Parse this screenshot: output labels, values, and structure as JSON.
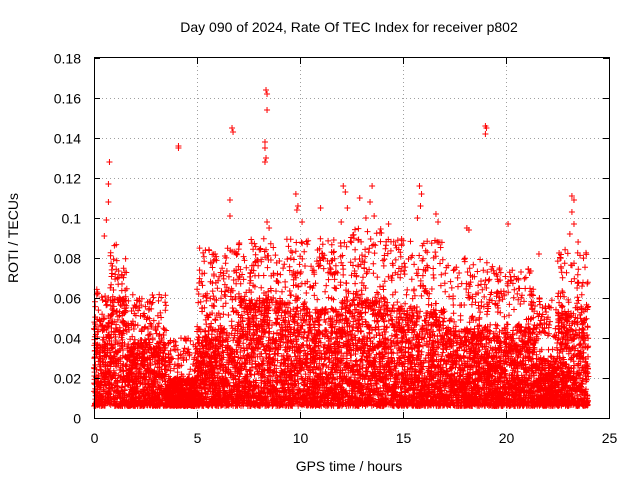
{
  "chart_data": {
    "type": "scatter",
    "title": "Day 090 of 2024, Rate Of TEC Index for receiver p802",
    "xlabel": "GPS time / hours",
    "ylabel": "ROTI / TECUs",
    "xlim": [
      0,
      25
    ],
    "ylim": [
      0,
      0.18
    ],
    "grid": true,
    "marker": "+",
    "color": "#ff0000",
    "x_ticks": [
      0,
      5,
      10,
      15,
      20,
      25
    ],
    "x_tick_labels": [
      "0",
      "5",
      "10",
      "15",
      "20",
      "25"
    ],
    "y_ticks": [
      0,
      0.02,
      0.04,
      0.06,
      0.08,
      0.1,
      0.12,
      0.14,
      0.16,
      0.18
    ],
    "y_tick_labels": [
      "0",
      "0.02",
      "0.04",
      "0.06",
      "0.08",
      "0.1",
      "0.12",
      "0.14",
      "0.16",
      "0.18"
    ],
    "envelope": [
      {
        "start": 0.0,
        "end": 0.8,
        "base": 0.006,
        "typical": 0.05,
        "max": 0.066
      },
      {
        "start": 0.8,
        "end": 1.6,
        "base": 0.006,
        "typical": 0.06,
        "max": 0.087
      },
      {
        "start": 1.6,
        "end": 3.5,
        "base": 0.006,
        "typical": 0.04,
        "max": 0.062
      },
      {
        "start": 3.5,
        "end": 5.0,
        "base": 0.006,
        "typical": 0.02,
        "max": 0.04
      },
      {
        "start": 5.0,
        "end": 7.0,
        "base": 0.006,
        "typical": 0.045,
        "max": 0.085
      },
      {
        "start": 7.0,
        "end": 9.5,
        "base": 0.006,
        "typical": 0.06,
        "max": 0.09
      },
      {
        "start": 9.5,
        "end": 12.0,
        "base": 0.006,
        "typical": 0.055,
        "max": 0.09
      },
      {
        "start": 12.0,
        "end": 14.0,
        "base": 0.006,
        "typical": 0.06,
        "max": 0.095
      },
      {
        "start": 14.0,
        "end": 17.0,
        "base": 0.006,
        "typical": 0.055,
        "max": 0.09
      },
      {
        "start": 17.0,
        "end": 19.5,
        "base": 0.006,
        "typical": 0.045,
        "max": 0.08
      },
      {
        "start": 19.5,
        "end": 21.5,
        "base": 0.006,
        "typical": 0.045,
        "max": 0.075
      },
      {
        "start": 21.5,
        "end": 22.5,
        "base": 0.006,
        "typical": 0.03,
        "max": 0.06
      },
      {
        "start": 22.5,
        "end": 24.0,
        "base": 0.006,
        "typical": 0.055,
        "max": 0.085
      }
    ],
    "outliers": [
      {
        "x": 0.6,
        "y": 0.099
      },
      {
        "x": 0.7,
        "y": 0.108
      },
      {
        "x": 0.7,
        "y": 0.117
      },
      {
        "x": 0.75,
        "y": 0.128
      },
      {
        "x": 0.5,
        "y": 0.091
      },
      {
        "x": 4.1,
        "y": 0.136
      },
      {
        "x": 4.1,
        "y": 0.135
      },
      {
        "x": 6.7,
        "y": 0.145
      },
      {
        "x": 6.75,
        "y": 0.143
      },
      {
        "x": 6.6,
        "y": 0.109
      },
      {
        "x": 6.6,
        "y": 0.101
      },
      {
        "x": 8.35,
        "y": 0.164
      },
      {
        "x": 8.4,
        "y": 0.162
      },
      {
        "x": 8.4,
        "y": 0.154
      },
      {
        "x": 8.3,
        "y": 0.138
      },
      {
        "x": 8.3,
        "y": 0.135
      },
      {
        "x": 8.35,
        "y": 0.13
      },
      {
        "x": 8.3,
        "y": 0.128
      },
      {
        "x": 8.4,
        "y": 0.098
      },
      {
        "x": 8.5,
        "y": 0.095
      },
      {
        "x": 9.8,
        "y": 0.112
      },
      {
        "x": 9.9,
        "y": 0.106
      },
      {
        "x": 9.85,
        "y": 0.104
      },
      {
        "x": 10.1,
        "y": 0.098
      },
      {
        "x": 11.0,
        "y": 0.105
      },
      {
        "x": 12.1,
        "y": 0.116
      },
      {
        "x": 12.2,
        "y": 0.113
      },
      {
        "x": 12.3,
        "y": 0.105
      },
      {
        "x": 12.0,
        "y": 0.098
      },
      {
        "x": 12.9,
        "y": 0.11
      },
      {
        "x": 13.2,
        "y": 0.1
      },
      {
        "x": 13.5,
        "y": 0.116
      },
      {
        "x": 13.4,
        "y": 0.108
      },
      {
        "x": 13.6,
        "y": 0.101
      },
      {
        "x": 14.3,
        "y": 0.097
      },
      {
        "x": 15.8,
        "y": 0.116
      },
      {
        "x": 15.9,
        "y": 0.112
      },
      {
        "x": 15.85,
        "y": 0.106
      },
      {
        "x": 15.7,
        "y": 0.1
      },
      {
        "x": 16.6,
        "y": 0.102
      },
      {
        "x": 16.7,
        "y": 0.098
      },
      {
        "x": 18.1,
        "y": 0.095
      },
      {
        "x": 18.2,
        "y": 0.094
      },
      {
        "x": 19.0,
        "y": 0.146
      },
      {
        "x": 19.05,
        "y": 0.145
      },
      {
        "x": 19.0,
        "y": 0.142
      },
      {
        "x": 20.1,
        "y": 0.097
      },
      {
        "x": 21.6,
        "y": 0.082
      },
      {
        "x": 23.2,
        "y": 0.111
      },
      {
        "x": 23.3,
        "y": 0.109
      },
      {
        "x": 23.2,
        "y": 0.103
      },
      {
        "x": 23.3,
        "y": 0.097
      },
      {
        "x": 23.1,
        "y": 0.092
      },
      {
        "x": 23.5,
        "y": 0.088
      }
    ]
  }
}
